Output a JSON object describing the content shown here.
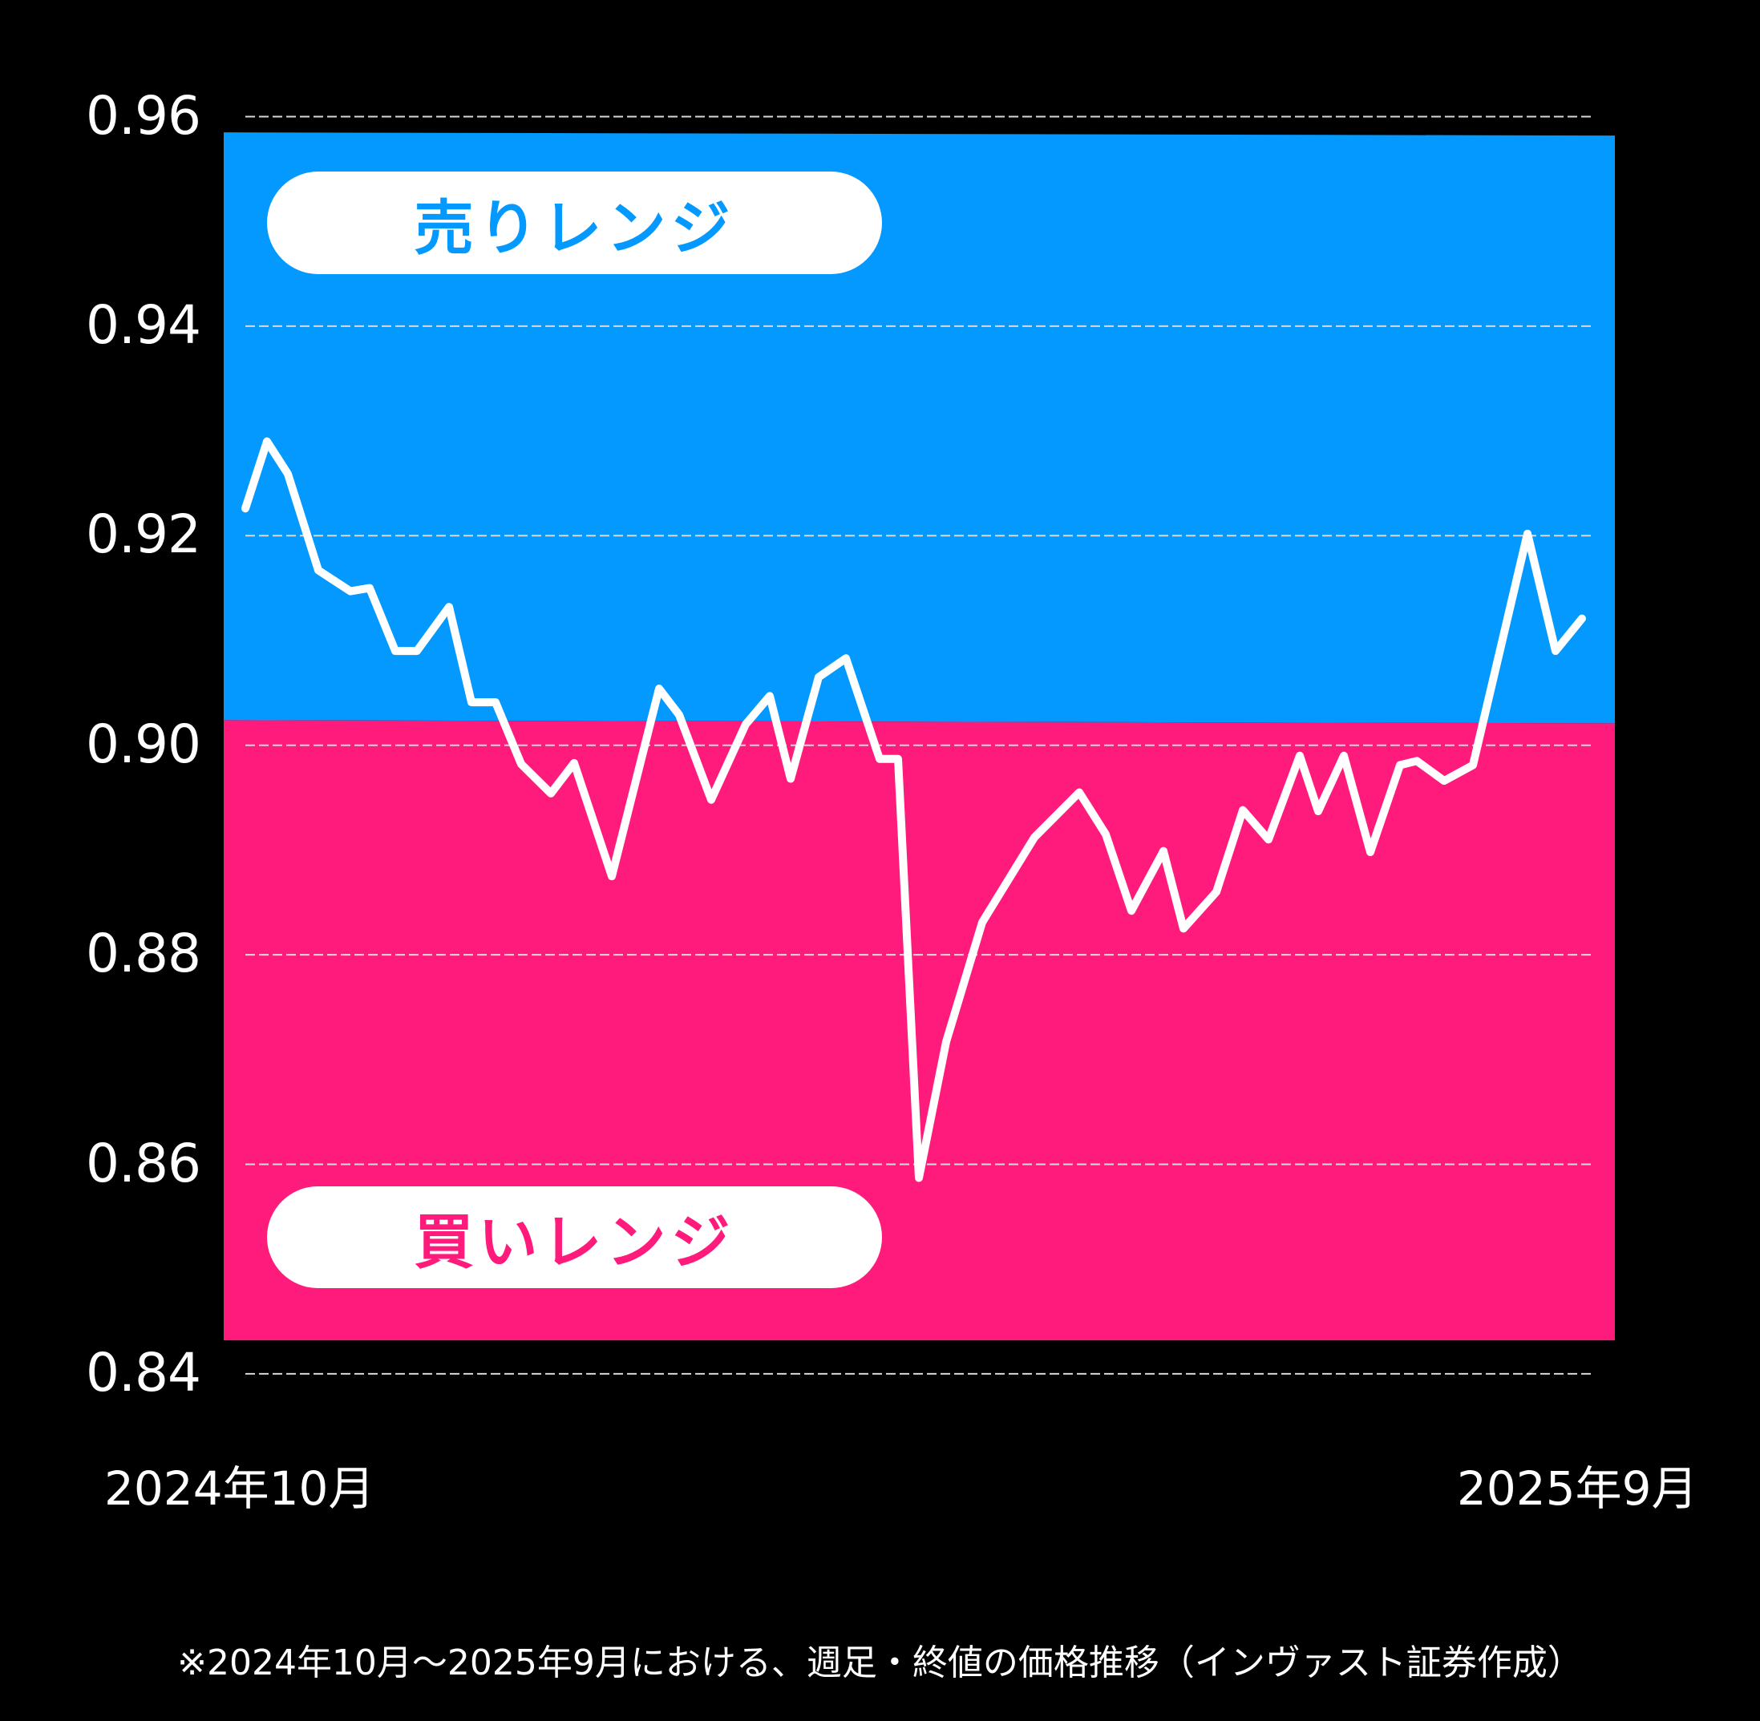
{
  "chart_data": {
    "type": "line",
    "title": "",
    "xlabel": "",
    "ylabel": "",
    "ylim": [
      0.84,
      0.96
    ],
    "y_ticks": [
      "0.96",
      "0.94",
      "0.92",
      "0.90",
      "0.88",
      "0.86",
      "0.84"
    ],
    "y_tick_values": [
      0.96,
      0.94,
      0.92,
      0.9,
      0.88,
      0.86,
      0.84
    ],
    "x_tick_labels": [
      "2024年10月",
      "2025年9月"
    ],
    "grid": "horizontal dashed",
    "legend": "none",
    "bands": [
      {
        "name": "売りレンジ",
        "from": 0.9024,
        "to": 0.9585,
        "color": "#0399FF"
      },
      {
        "name": "買いレンジ",
        "from": 0.8432,
        "to": 0.9024,
        "color": "#FF1B7B"
      }
    ],
    "series": [
      {
        "name": "週足・終値",
        "color": "#FFFFFF",
        "x_positions": [
          306,
          333,
          359,
          397,
          437,
          461,
          493,
          520,
          560,
          588,
          618,
          650,
          687,
          716,
          763,
          822,
          847,
          887,
          930,
          960,
          986,
          1021,
          1055,
          1097,
          1120,
          1146,
          1180,
          1225,
          1290,
          1346,
          1379,
          1411,
          1451,
          1476,
          1517,
          1550,
          1582,
          1621,
          1644,
          1676,
          1709,
          1746,
          1767,
          1801,
          1837,
          1905,
          1940,
          1973
        ],
        "values": [
          0.9226,
          0.929,
          0.9259,
          0.9167,
          0.9147,
          0.915,
          0.909,
          0.909,
          0.9132,
          0.9041,
          0.9041,
          0.8982,
          0.8954,
          0.8983,
          0.8875,
          0.9054,
          0.9029,
          0.8948,
          0.902,
          0.9047,
          0.8968,
          0.9065,
          0.9083,
          0.8987,
          0.8987,
          0.8587,
          0.8717,
          0.8831,
          0.8912,
          0.8955,
          0.8915,
          0.8842,
          0.8899,
          0.8825,
          0.886,
          0.8938,
          0.891,
          0.899,
          0.8937,
          0.899,
          0.8898,
          0.8981,
          0.8985,
          0.8966,
          0.8981,
          0.9202,
          0.909,
          0.9121
        ]
      }
    ]
  },
  "labels": {
    "sell_range": "売りレンジ",
    "buy_range": "買いレンジ",
    "x_start": "2024年10月",
    "x_end": "2025年9月",
    "footnote": "※2024年10月〜2025年9月における、週足・終値の価格推移（インヴァスト証券作成）"
  },
  "colors": {
    "background": "#000000",
    "sell_band": "#0399FF",
    "buy_band": "#FF1B7B",
    "line": "#FFFFFF",
    "grid": "#D9D9D9"
  }
}
